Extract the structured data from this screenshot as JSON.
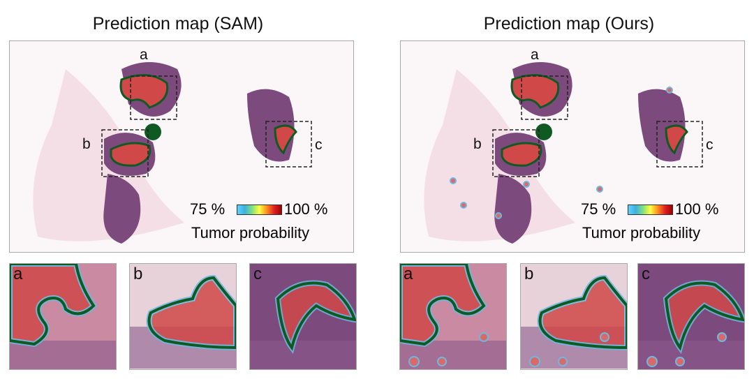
{
  "panels": [
    {
      "id": "sam",
      "title": "Prediction map (SAM)",
      "colorbar": {
        "min_label": "75 %",
        "max_label": "100 %",
        "title": "Tumor probability",
        "colors": [
          "#5fd0ff",
          "#7fe07f",
          "#ffff40",
          "#ff9020",
          "#a00000"
        ]
      },
      "regions": [
        "a",
        "b",
        "c"
      ],
      "insets": [
        {
          "label": "a"
        },
        {
          "label": "b"
        },
        {
          "label": "c"
        }
      ]
    },
    {
      "id": "ours",
      "title": "Prediction map (Ours)",
      "colorbar": {
        "min_label": "75 %",
        "max_label": "100 %",
        "title": "Tumor probability",
        "colors": [
          "#5fd0ff",
          "#7fe07f",
          "#ffff40",
          "#ff9020",
          "#a00000"
        ]
      },
      "regions": [
        "a",
        "b",
        "c"
      ],
      "insets": [
        {
          "label": "a"
        },
        {
          "label": "b"
        },
        {
          "label": "c"
        }
      ]
    }
  ],
  "colors": {
    "tissue": "#7d4a7e",
    "tumor": "#d04848",
    "outline": "#0f5a22",
    "stroma": "#f0c8d4"
  }
}
